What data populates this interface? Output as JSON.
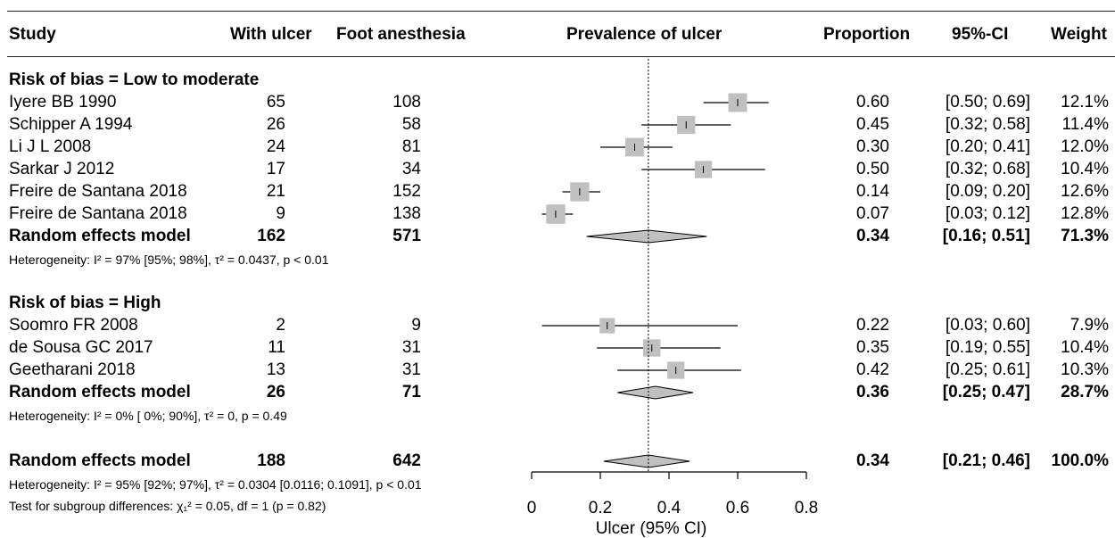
{
  "chart_data": {
    "type": "forest",
    "xlabel": "Ulcer (95% CI)",
    "xlim": [
      0,
      0.8
    ],
    "xticks": [
      "0",
      "0.2",
      "0.4",
      "0.6",
      "0.8"
    ],
    "reference_line": 0.34,
    "headers": {
      "study": "Study",
      "with_ulcer": "With ulcer",
      "foot_anesthesia": "Foot anesthesia",
      "plot": "Prevalence of ulcer",
      "proportion": "Proportion",
      "ci": "95%-CI",
      "weight": "Weight"
    },
    "groups": [
      {
        "title": "Risk of bias = Low to moderate",
        "studies": [
          {
            "study": "Iyere BB  1990",
            "with_ulcer": "65",
            "foot_anesthesia": "108",
            "prop": 0.6,
            "lower": 0.5,
            "upper": 0.69,
            "prop_text": "0.60",
            "ci_text": "[0.50; 0.69]",
            "weight_text": "12.1%",
            "weight": 12.1
          },
          {
            "study": "Schipper A  1994",
            "with_ulcer": "26",
            "foot_anesthesia": "58",
            "prop": 0.45,
            "lower": 0.32,
            "upper": 0.58,
            "prop_text": "0.45",
            "ci_text": "[0.32; 0.58]",
            "weight_text": "11.4%",
            "weight": 11.4
          },
          {
            "study": "Li J L  2008",
            "with_ulcer": "24",
            "foot_anesthesia": "81",
            "prop": 0.3,
            "lower": 0.2,
            "upper": 0.41,
            "prop_text": "0.30",
            "ci_text": "[0.20; 0.41]",
            "weight_text": "12.0%",
            "weight": 12.0
          },
          {
            "study": "Sarkar J  2012",
            "with_ulcer": "17",
            "foot_anesthesia": "34",
            "prop": 0.5,
            "lower": 0.32,
            "upper": 0.68,
            "prop_text": "0.50",
            "ci_text": "[0.32; 0.68]",
            "weight_text": "10.4%",
            "weight": 10.4
          },
          {
            "study": "Freire de Santana  2018",
            "with_ulcer": "21",
            "foot_anesthesia": "152",
            "prop": 0.14,
            "lower": 0.09,
            "upper": 0.2,
            "prop_text": "0.14",
            "ci_text": "[0.09; 0.20]",
            "weight_text": "12.6%",
            "weight": 12.6
          },
          {
            "study": "Freire de Santana  2018",
            "with_ulcer": "9",
            "foot_anesthesia": "138",
            "prop": 0.07,
            "lower": 0.03,
            "upper": 0.12,
            "prop_text": "0.07",
            "ci_text": "[0.03; 0.12]",
            "weight_text": "12.8%",
            "weight": 12.8
          }
        ],
        "model": {
          "label": "Random effects model",
          "with_ulcer": "162",
          "foot_anesthesia": "571",
          "prop": 0.34,
          "lower": 0.16,
          "upper": 0.51,
          "prop_text": "0.34",
          "ci_text": "[0.16; 0.51]",
          "weight_text": "71.3%"
        },
        "heterogeneity": "Heterogeneity: I² = 97% [95%; 98%], τ² = 0.0437, p < 0.01"
      },
      {
        "title": "Risk of bias = High",
        "studies": [
          {
            "study": "Soomro FR  2008",
            "with_ulcer": "2",
            "foot_anesthesia": "9",
            "prop": 0.22,
            "lower": 0.03,
            "upper": 0.6,
            "prop_text": "0.22",
            "ci_text": "[0.03; 0.60]",
            "weight_text": "7.9%",
            "weight": 7.9
          },
          {
            "study": "de Sousa GC  2017",
            "with_ulcer": "11",
            "foot_anesthesia": "31",
            "prop": 0.35,
            "lower": 0.19,
            "upper": 0.55,
            "prop_text": "0.35",
            "ci_text": "[0.19; 0.55]",
            "weight_text": "10.4%",
            "weight": 10.4
          },
          {
            "study": "Geetharani  2018",
            "with_ulcer": "13",
            "foot_anesthesia": "31",
            "prop": 0.42,
            "lower": 0.25,
            "upper": 0.61,
            "prop_text": "0.42",
            "ci_text": "[0.25; 0.61]",
            "weight_text": "10.3%",
            "weight": 10.3
          }
        ],
        "model": {
          "label": "Random effects model",
          "with_ulcer": "26",
          "foot_anesthesia": "71",
          "prop": 0.36,
          "lower": 0.25,
          "upper": 0.47,
          "prop_text": "0.36",
          "ci_text": "[0.25; 0.47]",
          "weight_text": "28.7%"
        },
        "heterogeneity": "Heterogeneity: I² = 0% [ 0%; 90%], τ² = 0, p = 0.49"
      }
    ],
    "overall": {
      "label": "Random effects model",
      "with_ulcer": "188",
      "foot_anesthesia": "642",
      "prop": 0.34,
      "lower": 0.21,
      "upper": 0.46,
      "prop_text": "0.34",
      "ci_text": "[0.21; 0.46]",
      "weight_text": "100.0%"
    },
    "overall_heterogeneity": "Heterogeneity: I² = 95% [92%; 97%], τ² = 0.0304 [0.0116; 0.1091], p < 0.01",
    "subgroup_test": "Test for subgroup differences: χ₁² = 0.05, df = 1 (p = 0.82)"
  }
}
